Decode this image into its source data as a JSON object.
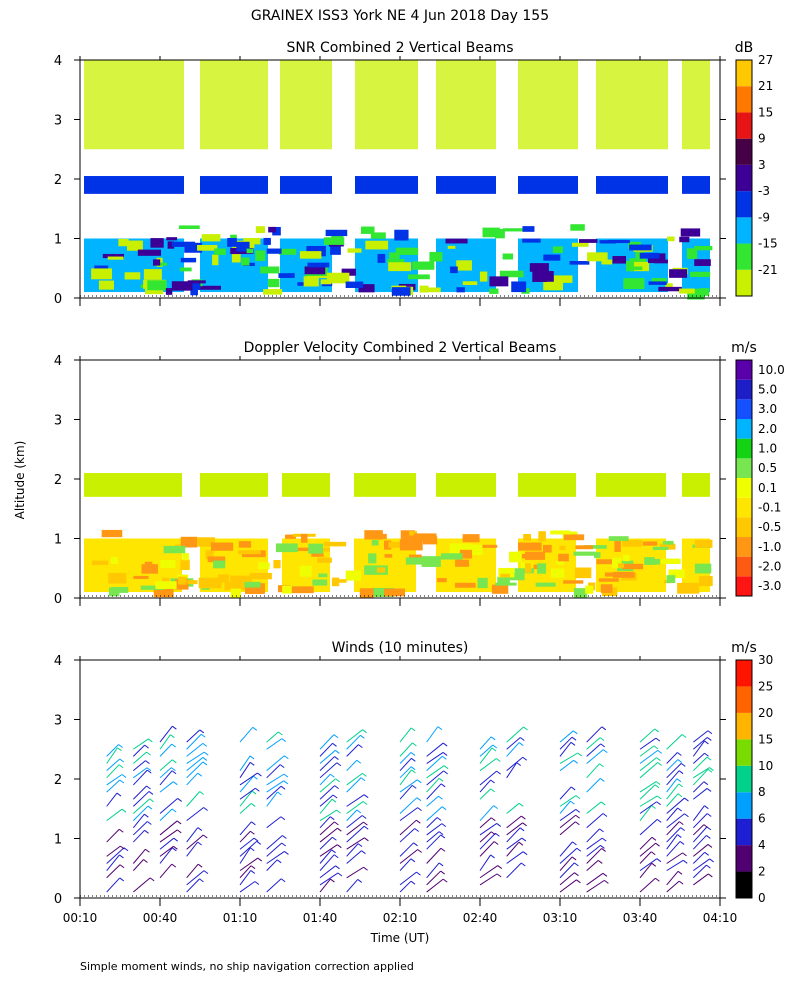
{
  "figure_title": "GRAINEX ISS3 York NE   4 Jun 2018 Day 155",
  "y_axis_label": "Altitude (km)",
  "x_axis_label": "Time (UT)",
  "footnote": "Simple moment winds, no ship navigation correction applied",
  "colors": {
    "snr_scale": [
      "#c8f000",
      "#32e632",
      "#00b4ff",
      "#0032e6",
      "#3c0096",
      "#460046",
      "#e61414",
      "#ff7800",
      "#ffc800"
    ],
    "doppler_scale": [
      "#ff1414",
      "#ff5a14",
      "#ff9614",
      "#ffc800",
      "#ffe600",
      "#f0ff00",
      "#c8f000",
      "#78e650",
      "#14d214",
      "#00b4ff",
      "#1450ff",
      "#1e1ec8",
      "#5a00aa",
      "#3c003c"
    ],
    "wind_scale": [
      "#000000",
      "#500070",
      "#1e1ed2",
      "#00a0ff",
      "#00d28c",
      "#78dc00",
      "#ffb400",
      "#ff6400",
      "#ff1400"
    ]
  },
  "chart_data": [
    {
      "type": "heatmap",
      "title": "SNR Combined 2 Vertical Beams",
      "units": "dB",
      "x_ticks": [
        "00:10",
        "00:40",
        "01:10",
        "01:40",
        "02:10",
        "02:40",
        "03:10",
        "03:40",
        "04:10"
      ],
      "y_ticks": [
        "0",
        "1",
        "2",
        "3",
        "4"
      ],
      "y_range_km": [
        0,
        4
      ],
      "colorbar_labels": [
        "-21",
        "-15",
        "-9",
        "-3",
        "3",
        "9",
        "15",
        "21",
        "27"
      ],
      "layers": [
        {
          "alt_km": [
            0.1,
            1.0
          ],
          "level": "-9 to -3"
        },
        {
          "alt_km": [
            1.75,
            2.05
          ],
          "level": "-3 to 3"
        },
        {
          "alt_km": [
            2.5,
            4.0
          ],
          "level": "-21 to -15"
        }
      ]
    },
    {
      "type": "heatmap",
      "title": "Doppler Velocity Combined 2 Vertical Beams",
      "units": "m/s",
      "x_ticks": [
        "00:10",
        "00:40",
        "01:10",
        "01:40",
        "02:10",
        "02:40",
        "03:10",
        "03:40",
        "04:10"
      ],
      "y_ticks": [
        "0",
        "1",
        "2",
        "3",
        "4"
      ],
      "y_range_km": [
        0,
        4
      ],
      "colorbar_labels": [
        "10.0",
        "5.0",
        "3.0",
        "2.0",
        "1.0",
        "0.5",
        "0.1",
        "-0.1",
        "-0.5",
        "-1.0",
        "-2.0",
        "-3.0"
      ],
      "layers": [
        {
          "alt_km": [
            0.1,
            1.0
          ],
          "level": "-0.5 to -0.1"
        },
        {
          "alt_km": [
            1.7,
            2.1
          ],
          "level": "-0.1 to 0.5"
        }
      ]
    },
    {
      "type": "scatter",
      "title": "Winds (10 minutes)",
      "units": "m/s",
      "x_ticks": [
        "00:10",
        "00:40",
        "01:10",
        "01:40",
        "02:10",
        "02:40",
        "03:10",
        "03:40",
        "04:10"
      ],
      "y_ticks": [
        "0",
        "1",
        "2",
        "3",
        "4"
      ],
      "y_range_km": [
        0,
        4
      ],
      "colorbar_labels": [
        "0",
        "2",
        "4",
        "6",
        "8",
        "10",
        "15",
        "20",
        "25",
        "30"
      ],
      "profile_times_ut": [
        "00:20",
        "00:30",
        "00:40",
        "00:50",
        "01:10",
        "01:20",
        "01:40",
        "01:50",
        "02:10",
        "02:20",
        "02:40",
        "02:50",
        "03:10",
        "03:20",
        "03:40",
        "03:50",
        "04:00"
      ]
    }
  ]
}
